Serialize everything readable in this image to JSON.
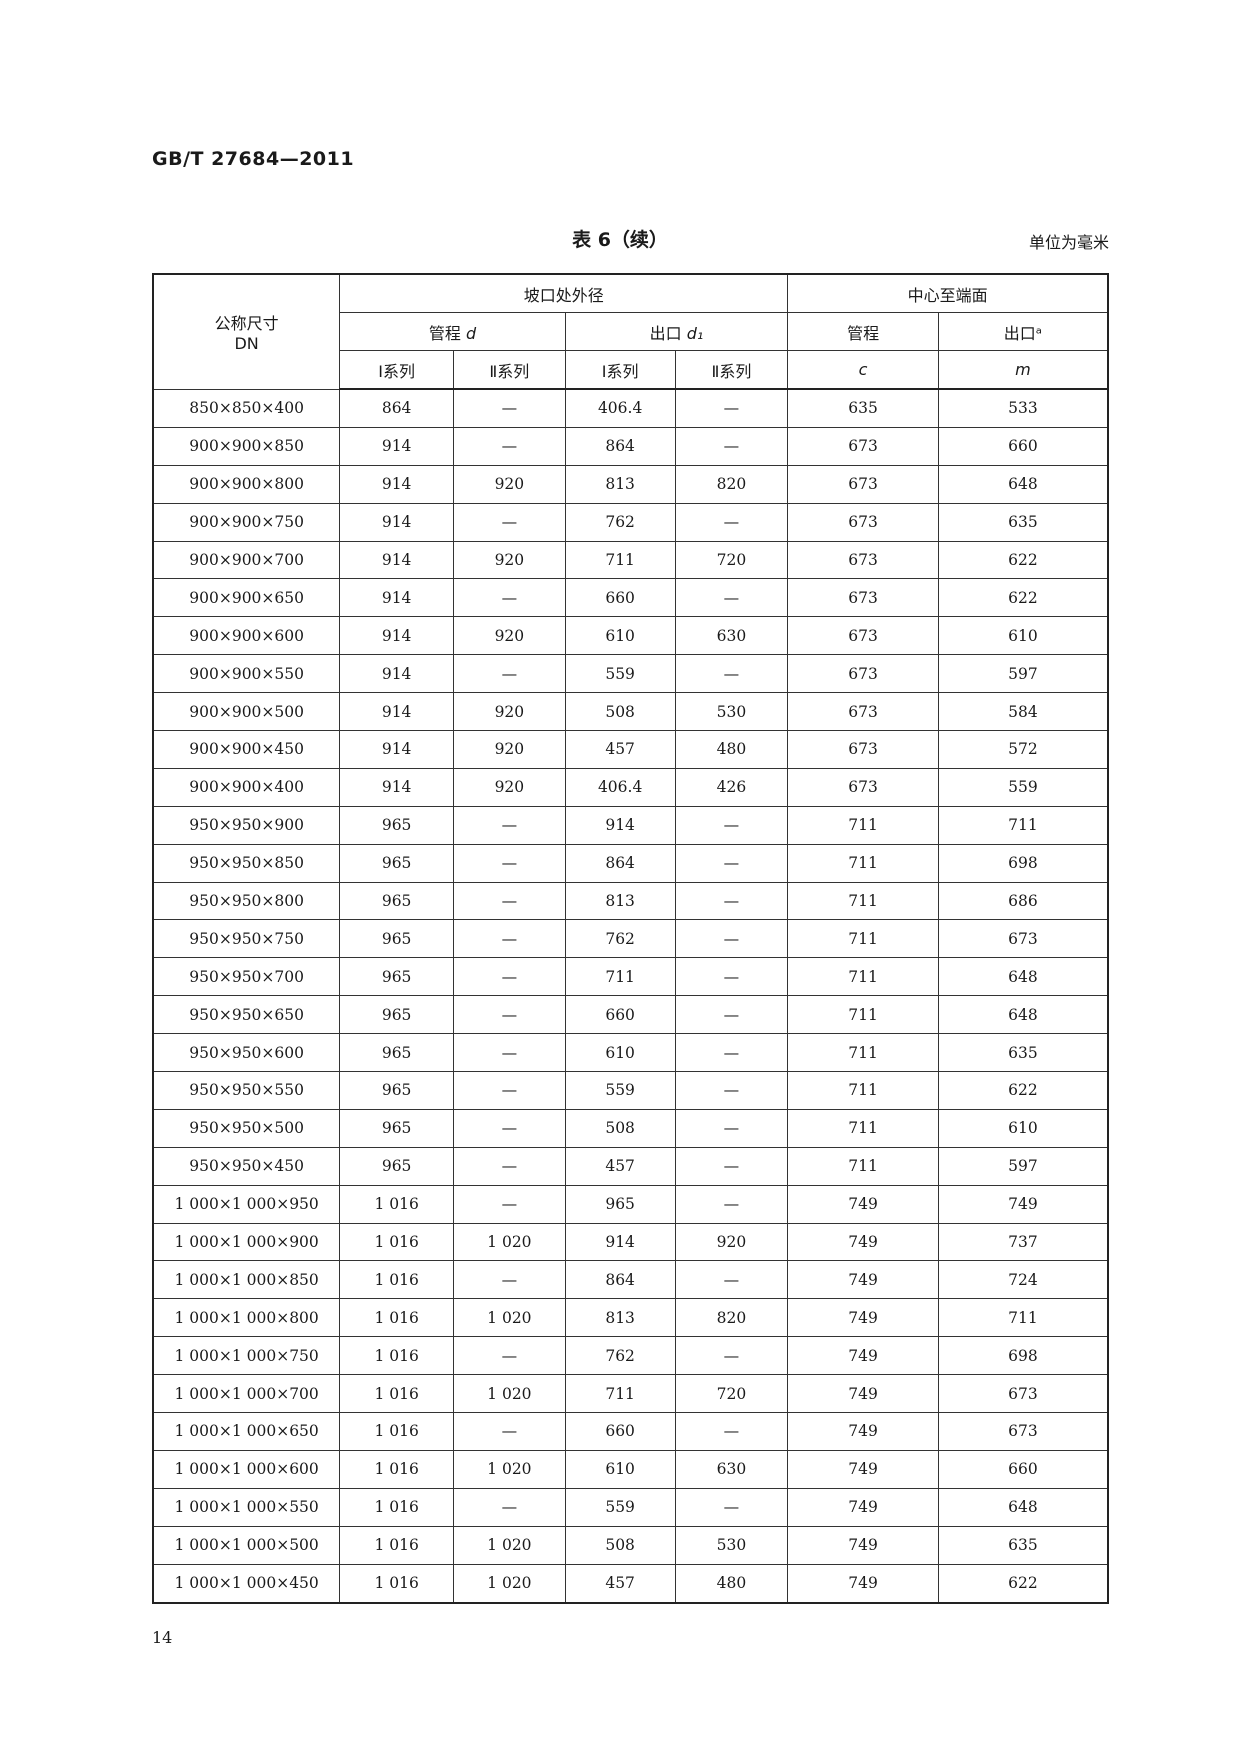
{
  "header": {
    "standard_number": "GB/T 27684—2011"
  },
  "table_caption": "表 6（续）",
  "unit_note": "单位为毫米",
  "columns": {
    "dn": "公称尺寸",
    "dn_sub": "DN",
    "bevel_od": "坡口处外径",
    "center_to_end": "中心至端面",
    "run_d": "管程",
    "run_d_sym": "d",
    "outlet_d1": "出口",
    "outlet_d1_sym": "d₁",
    "series1": "Ⅰ系列",
    "series2": "Ⅱ系列",
    "run_c": "管程",
    "run_c_sym": "c",
    "outlet_m": "出口ᵃ",
    "outlet_m_sym": "m"
  },
  "rows": [
    [
      "850×850×400",
      "864",
      "—",
      "406.4",
      "—",
      "635",
      "533"
    ],
    [
      "900×900×850",
      "914",
      "—",
      "864",
      "—",
      "673",
      "660"
    ],
    [
      "900×900×800",
      "914",
      "920",
      "813",
      "820",
      "673",
      "648"
    ],
    [
      "900×900×750",
      "914",
      "—",
      "762",
      "—",
      "673",
      "635"
    ],
    [
      "900×900×700",
      "914",
      "920",
      "711",
      "720",
      "673",
      "622"
    ],
    [
      "900×900×650",
      "914",
      "—",
      "660",
      "—",
      "673",
      "622"
    ],
    [
      "900×900×600",
      "914",
      "920",
      "610",
      "630",
      "673",
      "610"
    ],
    [
      "900×900×550",
      "914",
      "—",
      "559",
      "—",
      "673",
      "597"
    ],
    [
      "900×900×500",
      "914",
      "920",
      "508",
      "530",
      "673",
      "584"
    ],
    [
      "900×900×450",
      "914",
      "920",
      "457",
      "480",
      "673",
      "572"
    ],
    [
      "900×900×400",
      "914",
      "920",
      "406.4",
      "426",
      "673",
      "559"
    ],
    [
      "950×950×900",
      "965",
      "—",
      "914",
      "—",
      "711",
      "711"
    ],
    [
      "950×950×850",
      "965",
      "—",
      "864",
      "—",
      "711",
      "698"
    ],
    [
      "950×950×800",
      "965",
      "—",
      "813",
      "—",
      "711",
      "686"
    ],
    [
      "950×950×750",
      "965",
      "—",
      "762",
      "—",
      "711",
      "673"
    ],
    [
      "950×950×700",
      "965",
      "—",
      "711",
      "—",
      "711",
      "648"
    ],
    [
      "950×950×650",
      "965",
      "—",
      "660",
      "—",
      "711",
      "648"
    ],
    [
      "950×950×600",
      "965",
      "—",
      "610",
      "—",
      "711",
      "635"
    ],
    [
      "950×950×550",
      "965",
      "—",
      "559",
      "—",
      "711",
      "622"
    ],
    [
      "950×950×500",
      "965",
      "—",
      "508",
      "—",
      "711",
      "610"
    ],
    [
      "950×950×450",
      "965",
      "—",
      "457",
      "—",
      "711",
      "597"
    ],
    [
      "1 000×1 000×950",
      "1 016",
      "—",
      "965",
      "—",
      "749",
      "749"
    ],
    [
      "1 000×1 000×900",
      "1 016",
      "1 020",
      "914",
      "920",
      "749",
      "737"
    ],
    [
      "1 000×1 000×850",
      "1 016",
      "—",
      "864",
      "—",
      "749",
      "724"
    ],
    [
      "1 000×1 000×800",
      "1 016",
      "1 020",
      "813",
      "820",
      "749",
      "711"
    ],
    [
      "1 000×1 000×750",
      "1 016",
      "—",
      "762",
      "—",
      "749",
      "698"
    ],
    [
      "1 000×1 000×700",
      "1 016",
      "1 020",
      "711",
      "720",
      "749",
      "673"
    ],
    [
      "1 000×1 000×650",
      "1 016",
      "—",
      "660",
      "—",
      "749",
      "673"
    ],
    [
      "1 000×1 000×600",
      "1 016",
      "1 020",
      "610",
      "630",
      "749",
      "660"
    ],
    [
      "1 000×1 000×550",
      "1 016",
      "—",
      "559",
      "—",
      "749",
      "648"
    ],
    [
      "1 000×1 000×500",
      "1 016",
      "1 020",
      "508",
      "530",
      "749",
      "635"
    ],
    [
      "1 000×1 000×450",
      "1 016",
      "1 020",
      "457",
      "480",
      "749",
      "622"
    ]
  ],
  "page_number": "14"
}
